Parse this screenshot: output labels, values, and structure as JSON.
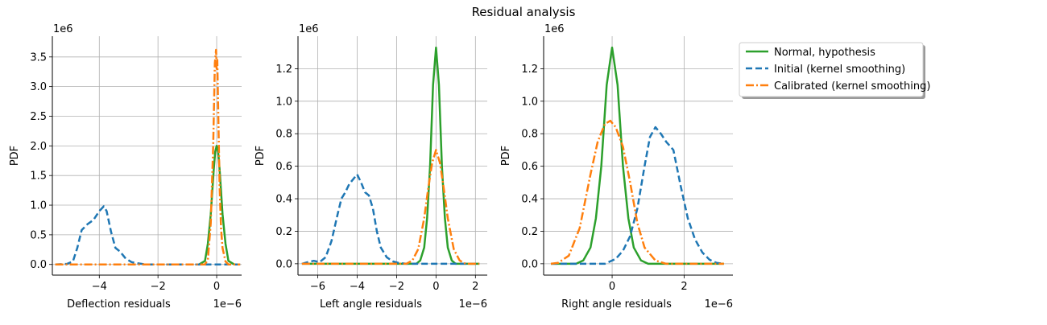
{
  "figure": {
    "title": "Residual analysis",
    "colors": {
      "normal": "#2ca02c",
      "initial": "#1f77b4",
      "calibrated": "#ff7f0e",
      "grid": "#b0b0b0"
    }
  },
  "legend": {
    "placement": "upper-right-outside",
    "entries": [
      {
        "key": "normal",
        "label": "Normal, hypothesis",
        "style": "solid"
      },
      {
        "key": "initial",
        "label": "Initial (kernel smoothing)",
        "style": "dashed"
      },
      {
        "key": "calibrated",
        "label": "Calibrated (kernel smoothing)",
        "style": "dashdot"
      }
    ]
  },
  "chart_data": [
    {
      "type": "line",
      "xlabel": "Deflection residuals",
      "ylabel": "PDF",
      "x_scale_label": "1e−6",
      "y_scale_label": "1e6",
      "xlim": [
        -5.6,
        0.85
      ],
      "ylim": [
        -0.18,
        3.85
      ],
      "xticks": [
        -4,
        -2,
        0
      ],
      "xtick_labels": [
        "−4",
        "−2",
        "0"
      ],
      "yticks": [
        0,
        0.5,
        1,
        1.5,
        2,
        2.5,
        3,
        3.5
      ],
      "ytick_labels": [
        "0.0",
        "0.5",
        "1.0",
        "1.5",
        "2.0",
        "2.5",
        "3.0",
        "3.5"
      ],
      "grid": true,
      "series": [
        {
          "name": "Normal, hypothesis",
          "key": "normal",
          "x": [
            -0.6,
            -0.4,
            -0.3,
            -0.2,
            -0.1,
            -0.05,
            0,
            0.05,
            0.1,
            0.2,
            0.3,
            0.4,
            0.6,
            0.75
          ],
          "y": [
            0,
            0.06,
            0.35,
            0.85,
            1.6,
            1.9,
            2.0,
            1.9,
            1.6,
            0.85,
            0.35,
            0.06,
            0,
            0
          ]
        },
        {
          "name": "Initial (kernel smoothing)",
          "key": "initial",
          "x": [
            -5.5,
            -5.1,
            -4.9,
            -4.75,
            -4.6,
            -4.4,
            -4.2,
            -4.0,
            -3.85,
            -3.75,
            -3.6,
            -3.45,
            -3.3,
            -3.1,
            -2.9,
            -2.7,
            -2.4,
            -2.0,
            0.8
          ],
          "y": [
            0,
            0.01,
            0.05,
            0.28,
            0.58,
            0.68,
            0.75,
            0.9,
            0.98,
            0.9,
            0.55,
            0.28,
            0.22,
            0.1,
            0.04,
            0.02,
            0,
            0,
            0
          ]
        },
        {
          "name": "Calibrated (kernel smoothing)",
          "key": "calibrated",
          "x": [
            -5.5,
            -0.4,
            -0.3,
            -0.2,
            -0.12,
            -0.06,
            -0.02,
            0.0,
            0.02,
            0.06,
            0.1,
            0.15,
            0.2,
            0.3,
            0.4,
            0.8
          ],
          "y": [
            0,
            0,
            0.08,
            0.7,
            2.0,
            3.4,
            3.62,
            3.3,
            3.45,
            2.4,
            1.3,
            0.6,
            0.28,
            0.05,
            0,
            0
          ]
        }
      ]
    },
    {
      "type": "line",
      "xlabel": "Left angle residuals",
      "ylabel": "PDF",
      "x_scale_label": "1e−6",
      "y_scale_label": "1e6",
      "xlim": [
        -7.0,
        2.6
      ],
      "ylim": [
        -0.07,
        1.4
      ],
      "xticks": [
        -6,
        -4,
        -2,
        0,
        2
      ],
      "xtick_labels": [
        "−6",
        "−4",
        "−2",
        "0",
        "2"
      ],
      "yticks": [
        0,
        0.2,
        0.4,
        0.6,
        0.8,
        1.0,
        1.2
      ],
      "ytick_labels": [
        "0.0",
        "0.2",
        "0.4",
        "0.6",
        "0.8",
        "1.0",
        "1.2"
      ],
      "grid": true,
      "series": [
        {
          "name": "Normal, hypothesis",
          "key": "normal",
          "x": [
            -6.8,
            -1.0,
            -0.8,
            -0.6,
            -0.45,
            -0.3,
            -0.15,
            0,
            0.15,
            0.3,
            0.45,
            0.6,
            0.8,
            1.0,
            2.2
          ],
          "y": [
            0,
            0,
            0.02,
            0.1,
            0.28,
            0.6,
            1.1,
            1.33,
            1.1,
            0.6,
            0.28,
            0.1,
            0.02,
            0,
            0
          ]
        },
        {
          "name": "Initial (kernel smoothing)",
          "key": "initial",
          "x": [
            -6.8,
            -6.5,
            -6.2,
            -5.9,
            -5.6,
            -5.3,
            -5.0,
            -4.8,
            -4.6,
            -4.4,
            -4.2,
            -4.0,
            -3.8,
            -3.6,
            -3.4,
            -3.2,
            -3.0,
            -2.8,
            -2.5,
            -2.2,
            -1.9,
            -1.5,
            -1.0,
            2.2
          ],
          "y": [
            0,
            0.01,
            0.018,
            0.01,
            0.04,
            0.14,
            0.3,
            0.4,
            0.44,
            0.49,
            0.52,
            0.55,
            0.5,
            0.44,
            0.42,
            0.34,
            0.2,
            0.1,
            0.04,
            0.015,
            0.005,
            0,
            0,
            0
          ]
        },
        {
          "name": "Calibrated (kernel smoothing)",
          "key": "calibrated",
          "x": [
            -6.8,
            -1.5,
            -1.2,
            -0.9,
            -0.6,
            -0.4,
            -0.2,
            0,
            0.2,
            0.4,
            0.6,
            0.9,
            1.2,
            1.5,
            2.2
          ],
          "y": [
            0,
            0,
            0.02,
            0.09,
            0.28,
            0.46,
            0.62,
            0.7,
            0.62,
            0.46,
            0.28,
            0.09,
            0.02,
            0,
            0
          ]
        }
      ]
    },
    {
      "type": "line",
      "xlabel": "Right angle residuals",
      "ylabel": "PDF",
      "x_scale_label": "1e−6",
      "y_scale_label": "1e6",
      "xlim": [
        -1.9,
        3.35
      ],
      "ylim": [
        -0.07,
        1.4
      ],
      "xticks": [
        0,
        2
      ],
      "xtick_labels": [
        "0",
        "2"
      ],
      "yticks": [
        0,
        0.2,
        0.4,
        0.6,
        0.8,
        1.0,
        1.2
      ],
      "ytick_labels": [
        "0.0",
        "0.2",
        "0.4",
        "0.6",
        "0.8",
        "1.0",
        "1.2"
      ],
      "grid": true,
      "series": [
        {
          "name": "Normal, hypothesis",
          "key": "normal",
          "x": [
            -1.7,
            -1.0,
            -0.8,
            -0.6,
            -0.45,
            -0.3,
            -0.15,
            0,
            0.15,
            0.3,
            0.45,
            0.6,
            0.8,
            1.0,
            3.1
          ],
          "y": [
            0,
            0,
            0.02,
            0.1,
            0.28,
            0.6,
            1.1,
            1.33,
            1.1,
            0.6,
            0.28,
            0.1,
            0.02,
            0,
            0
          ]
        },
        {
          "name": "Initial (kernel smoothing)",
          "key": "initial",
          "x": [
            -1.7,
            -0.2,
            0.1,
            0.3,
            0.5,
            0.7,
            0.9,
            1.05,
            1.2,
            1.35,
            1.5,
            1.7,
            1.9,
            2.1,
            2.3,
            2.5,
            2.7,
            2.9,
            3.1
          ],
          "y": [
            0,
            0,
            0.03,
            0.08,
            0.17,
            0.34,
            0.6,
            0.78,
            0.84,
            0.8,
            0.75,
            0.7,
            0.48,
            0.28,
            0.15,
            0.07,
            0.025,
            0.005,
            0
          ]
        },
        {
          "name": "Calibrated (kernel smoothing)",
          "key": "calibrated",
          "x": [
            -1.7,
            -1.5,
            -1.2,
            -0.9,
            -0.6,
            -0.4,
            -0.2,
            -0.05,
            0.1,
            0.3,
            0.5,
            0.7,
            0.9,
            1.2,
            1.5,
            3.1
          ],
          "y": [
            0,
            0.005,
            0.05,
            0.22,
            0.55,
            0.75,
            0.86,
            0.88,
            0.84,
            0.72,
            0.5,
            0.25,
            0.1,
            0.02,
            0,
            0
          ]
        }
      ]
    }
  ]
}
